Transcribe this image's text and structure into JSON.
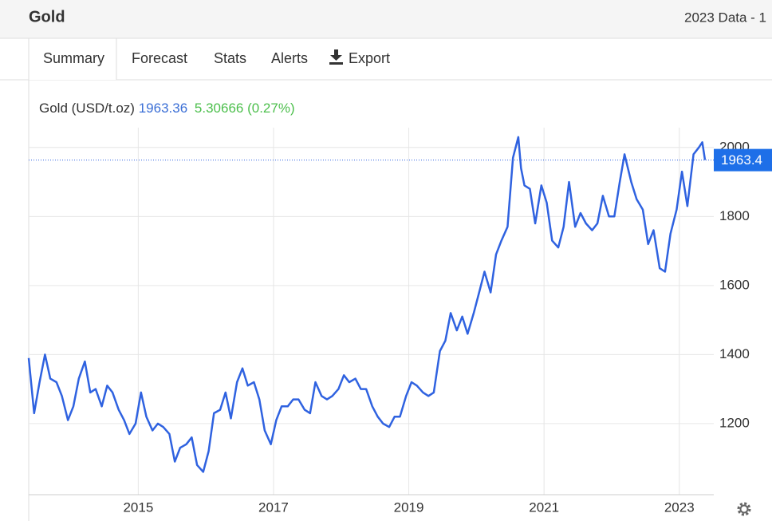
{
  "header": {
    "title": "Gold",
    "right_text": "2023 Data - 1"
  },
  "tabs": [
    "Summary",
    "Forecast",
    "Stats",
    "Alerts",
    "Export"
  ],
  "chart_data": {
    "type": "line",
    "legend": {
      "name": "Gold (USD/t.oz)",
      "price": "1963.36",
      "change": "5.30666 (0.27%)"
    },
    "last_label": "1963.4",
    "xlim": [
      2013.38,
      2023.51
    ],
    "xticks": [
      2015,
      2017,
      2019,
      2021,
      2023
    ],
    "ylim": [
      994,
      2196
    ],
    "yticks": [
      1200,
      1400,
      1600,
      1800,
      2000
    ],
    "grid": true,
    "x": [
      2013.38,
      2013.46,
      2013.54,
      2013.62,
      2013.7,
      2013.79,
      2013.87,
      2013.96,
      2014.04,
      2014.12,
      2014.21,
      2014.29,
      2014.37,
      2014.46,
      2014.54,
      2014.62,
      2014.71,
      2014.79,
      2014.87,
      2014.96,
      2015.04,
      2015.12,
      2015.21,
      2015.29,
      2015.37,
      2015.46,
      2015.54,
      2015.62,
      2015.71,
      2015.79,
      2015.87,
      2015.96,
      2016.04,
      2016.12,
      2016.21,
      2016.29,
      2016.37,
      2016.46,
      2016.54,
      2016.62,
      2016.71,
      2016.79,
      2016.87,
      2016.96,
      2017.04,
      2017.12,
      2017.21,
      2017.29,
      2017.37,
      2017.46,
      2017.54,
      2017.62,
      2017.71,
      2017.79,
      2017.87,
      2017.96,
      2018.04,
      2018.12,
      2018.21,
      2018.29,
      2018.37,
      2018.46,
      2018.54,
      2018.62,
      2018.71,
      2018.79,
      2018.87,
      2018.96,
      2019.04,
      2019.12,
      2019.21,
      2019.29,
      2019.37,
      2019.46,
      2019.54,
      2019.62,
      2019.71,
      2019.79,
      2019.87,
      2019.96,
      2020.04,
      2020.12,
      2020.21,
      2020.29,
      2020.37,
      2020.46,
      2020.54,
      2020.62,
      2020.66,
      2020.71,
      2020.79,
      2020.87,
      2020.96,
      2021.04,
      2021.12,
      2021.21,
      2021.29,
      2021.37,
      2021.46,
      2021.54,
      2021.62,
      2021.71,
      2021.79,
      2021.87,
      2021.96,
      2022.04,
      2022.12,
      2022.19,
      2022.29,
      2022.37,
      2022.46,
      2022.54,
      2022.62,
      2022.71,
      2022.79,
      2022.87,
      2022.96,
      2023.04,
      2023.12,
      2023.21,
      2023.29,
      2023.34,
      2023.38
    ],
    "series": [
      {
        "name": "Gold",
        "color": "#2f62e0",
        "values": [
          1390,
          1230,
          1320,
          1400,
          1330,
          1320,
          1280,
          1210,
          1250,
          1330,
          1380,
          1290,
          1300,
          1250,
          1310,
          1290,
          1240,
          1210,
          1170,
          1200,
          1290,
          1220,
          1180,
          1200,
          1190,
          1170,
          1090,
          1130,
          1140,
          1160,
          1080,
          1060,
          1120,
          1230,
          1240,
          1290,
          1215,
          1320,
          1360,
          1310,
          1320,
          1270,
          1180,
          1140,
          1210,
          1250,
          1250,
          1270,
          1270,
          1240,
          1230,
          1320,
          1280,
          1270,
          1280,
          1300,
          1340,
          1320,
          1330,
          1300,
          1300,
          1250,
          1220,
          1200,
          1190,
          1220,
          1220,
          1280,
          1320,
          1310,
          1290,
          1280,
          1290,
          1410,
          1440,
          1520,
          1470,
          1510,
          1460,
          1520,
          1580,
          1640,
          1580,
          1690,
          1730,
          1770,
          1970,
          2030,
          1940,
          1890,
          1880,
          1780,
          1890,
          1840,
          1730,
          1710,
          1770,
          1900,
          1770,
          1810,
          1780,
          1760,
          1780,
          1860,
          1800,
          1800,
          1900,
          1980,
          1900,
          1850,
          1820,
          1720,
          1760,
          1650,
          1640,
          1750,
          1820,
          1930,
          1830,
          1980,
          2000,
          2015,
          1963.36
        ]
      }
    ]
  }
}
